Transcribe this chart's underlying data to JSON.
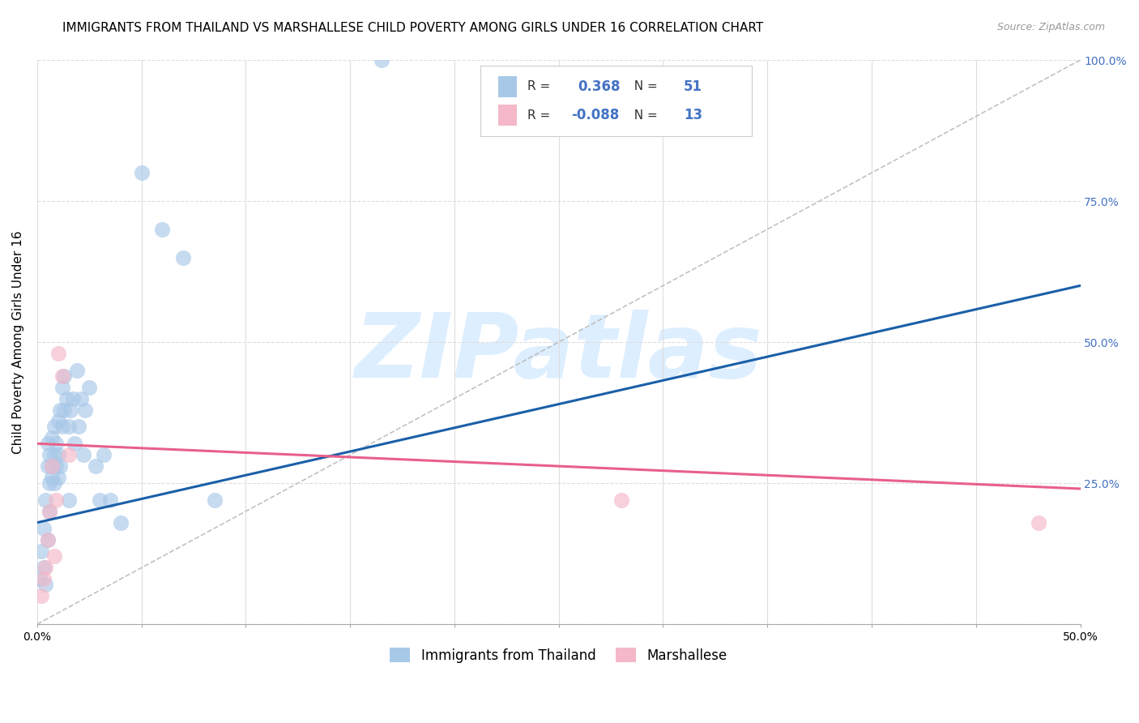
{
  "title": "IMMIGRANTS FROM THAILAND VS MARSHALLESE CHILD POVERTY AMONG GIRLS UNDER 16 CORRELATION CHART",
  "source": "Source: ZipAtlas.com",
  "ylabel": "Child Poverty Among Girls Under 16",
  "xlim": [
    0,
    0.5
  ],
  "ylim": [
    0,
    1.0
  ],
  "xticks": [
    0.0,
    0.05,
    0.1,
    0.15,
    0.2,
    0.25,
    0.3,
    0.35,
    0.4,
    0.45,
    0.5
  ],
  "xtick_labels_show": [
    "0.0%",
    "",
    "",
    "",
    "",
    "",
    "",
    "",
    "",
    "",
    "50.0%"
  ],
  "yticks": [
    0.0,
    0.25,
    0.5,
    0.75,
    1.0
  ],
  "right_ytick_labels": [
    "",
    "25.0%",
    "50.0%",
    "75.0%",
    "100.0%"
  ],
  "blue_color": "#a8c8e8",
  "pink_color": "#f4b8c8",
  "blue_line_color": "#1a5fa8",
  "pink_line_color": "#e8608a",
  "legend_R_blue": "0.368",
  "legend_N_blue": "51",
  "legend_R_pink": "-0.088",
  "legend_N_pink": "13",
  "blue_scatter_x": [
    0.001,
    0.002,
    0.003,
    0.003,
    0.004,
    0.004,
    0.005,
    0.005,
    0.005,
    0.006,
    0.006,
    0.006,
    0.007,
    0.007,
    0.007,
    0.008,
    0.008,
    0.008,
    0.009,
    0.009,
    0.01,
    0.01,
    0.01,
    0.011,
    0.011,
    0.012,
    0.012,
    0.013,
    0.013,
    0.014,
    0.015,
    0.015,
    0.016,
    0.017,
    0.018,
    0.019,
    0.02,
    0.021,
    0.022,
    0.023,
    0.025,
    0.028,
    0.03,
    0.032,
    0.035,
    0.04,
    0.05,
    0.06,
    0.07,
    0.085,
    0.165
  ],
  "blue_scatter_y": [
    0.08,
    0.13,
    0.1,
    0.17,
    0.07,
    0.22,
    0.15,
    0.28,
    0.32,
    0.2,
    0.25,
    0.3,
    0.26,
    0.28,
    0.33,
    0.25,
    0.3,
    0.35,
    0.28,
    0.32,
    0.26,
    0.3,
    0.36,
    0.28,
    0.38,
    0.35,
    0.42,
    0.38,
    0.44,
    0.4,
    0.22,
    0.35,
    0.38,
    0.4,
    0.32,
    0.45,
    0.35,
    0.4,
    0.3,
    0.38,
    0.42,
    0.28,
    0.22,
    0.3,
    0.22,
    0.18,
    0.8,
    0.7,
    0.65,
    0.22,
    1.0
  ],
  "pink_scatter_x": [
    0.002,
    0.003,
    0.004,
    0.005,
    0.006,
    0.007,
    0.008,
    0.009,
    0.01,
    0.012,
    0.015,
    0.28,
    0.48
  ],
  "pink_scatter_y": [
    0.05,
    0.08,
    0.1,
    0.15,
    0.2,
    0.28,
    0.12,
    0.22,
    0.48,
    0.44,
    0.3,
    0.22,
    0.18
  ],
  "blue_trend_x": [
    0.0,
    0.5
  ],
  "blue_trend_y": [
    0.18,
    0.6
  ],
  "pink_trend_x": [
    0.0,
    0.5
  ],
  "pink_trend_y": [
    0.32,
    0.24
  ],
  "ref_line_x": [
    0.0,
    0.5
  ],
  "ref_line_y": [
    0.0,
    1.0
  ],
  "watermark_text": "ZIPatlas",
  "watermark_color": "#ddeeff",
  "background_color": "#ffffff",
  "grid_color": "#dddddd",
  "title_fontsize": 11,
  "axis_label_fontsize": 11,
  "tick_fontsize": 10,
  "right_ytick_color": "#4472c4",
  "source_color": "#999999"
}
